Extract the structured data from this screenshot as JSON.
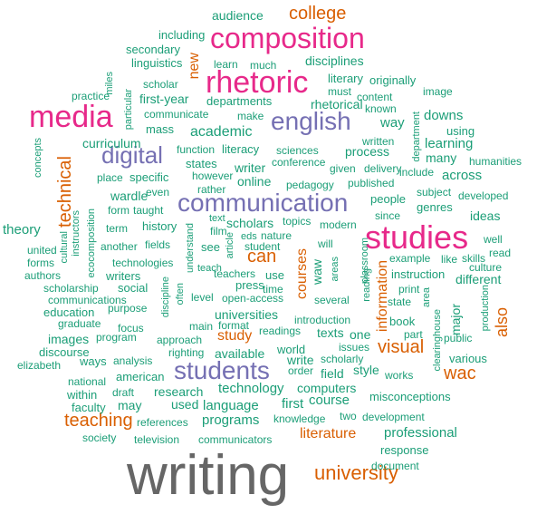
{
  "colors": {
    "green": "#1b9e77",
    "orange": "#d95f02",
    "purple": "#7570b3",
    "pink": "#e7298a",
    "gray": "#666666"
  },
  "words": [
    {
      "text": "writing",
      "color": "gray"
    },
    {
      "text": "composition",
      "color": "pink"
    },
    {
      "text": "rhetoric",
      "color": "pink"
    },
    {
      "text": "media",
      "color": "pink"
    },
    {
      "text": "studies",
      "color": "pink"
    },
    {
      "text": "english",
      "color": "purple"
    },
    {
      "text": "communication",
      "color": "purple"
    },
    {
      "text": "students",
      "color": "purple"
    },
    {
      "text": "digital",
      "color": "purple"
    },
    {
      "text": "college",
      "color": "orange"
    },
    {
      "text": "university",
      "color": "orange"
    },
    {
      "text": "wac",
      "color": "orange"
    },
    {
      "text": "visual",
      "color": "orange"
    },
    {
      "text": "technical",
      "color": "orange"
    },
    {
      "text": "teaching",
      "color": "orange"
    },
    {
      "text": "can",
      "color": "orange"
    },
    {
      "text": "study",
      "color": "orange"
    },
    {
      "text": "literature",
      "color": "orange"
    },
    {
      "text": "also",
      "color": "orange"
    },
    {
      "text": "information",
      "color": "orange"
    },
    {
      "text": "courses",
      "color": "orange"
    },
    {
      "text": "new",
      "color": "orange"
    },
    {
      "text": "audience",
      "color": "green"
    },
    {
      "text": "including",
      "color": "green"
    },
    {
      "text": "secondary",
      "color": "green"
    },
    {
      "text": "linguistics",
      "color": "green"
    },
    {
      "text": "learn",
      "color": "green"
    },
    {
      "text": "much",
      "color": "green"
    },
    {
      "text": "disciplines",
      "color": "green"
    },
    {
      "text": "literary",
      "color": "green"
    },
    {
      "text": "originally",
      "color": "green"
    },
    {
      "text": "scholar",
      "color": "green"
    },
    {
      "text": "miles",
      "color": "green"
    },
    {
      "text": "practice",
      "color": "green"
    },
    {
      "text": "particular",
      "color": "green"
    },
    {
      "text": "first-year",
      "color": "green"
    },
    {
      "text": "departments",
      "color": "green"
    },
    {
      "text": "rhetorical",
      "color": "green"
    },
    {
      "text": "must",
      "color": "green"
    },
    {
      "text": "content",
      "color": "green"
    },
    {
      "text": "image",
      "color": "green"
    },
    {
      "text": "known",
      "color": "green"
    },
    {
      "text": "communicate",
      "color": "green"
    },
    {
      "text": "make",
      "color": "green"
    },
    {
      "text": "mass",
      "color": "green"
    },
    {
      "text": "academic",
      "color": "green"
    },
    {
      "text": "way",
      "color": "green"
    },
    {
      "text": "downs",
      "color": "green"
    },
    {
      "text": "using",
      "color": "green"
    },
    {
      "text": "curriculum",
      "color": "green"
    },
    {
      "text": "written",
      "color": "green"
    },
    {
      "text": "department",
      "color": "green"
    },
    {
      "text": "learning",
      "color": "green"
    },
    {
      "text": "function",
      "color": "green"
    },
    {
      "text": "literacy",
      "color": "green"
    },
    {
      "text": "sciences",
      "color": "green"
    },
    {
      "text": "process",
      "color": "green"
    },
    {
      "text": "many",
      "color": "green"
    },
    {
      "text": "humanities",
      "color": "green"
    },
    {
      "text": "states",
      "color": "green"
    },
    {
      "text": "conference",
      "color": "green"
    },
    {
      "text": "writer",
      "color": "green"
    },
    {
      "text": "given",
      "color": "green"
    },
    {
      "text": "delivery",
      "color": "green"
    },
    {
      "text": "include",
      "color": "green"
    },
    {
      "text": "concepts",
      "color": "green"
    },
    {
      "text": "place",
      "color": "green"
    },
    {
      "text": "specific",
      "color": "green"
    },
    {
      "text": "however",
      "color": "green"
    },
    {
      "text": "online",
      "color": "green"
    },
    {
      "text": "across",
      "color": "green"
    },
    {
      "text": "wardle",
      "color": "green"
    },
    {
      "text": "even",
      "color": "green"
    },
    {
      "text": "rather",
      "color": "green"
    },
    {
      "text": "pedagogy",
      "color": "green"
    },
    {
      "text": "published",
      "color": "green"
    },
    {
      "text": "subject",
      "color": "green"
    },
    {
      "text": "developed",
      "color": "green"
    },
    {
      "text": "form",
      "color": "green"
    },
    {
      "text": "taught",
      "color": "green"
    },
    {
      "text": "people",
      "color": "green"
    },
    {
      "text": "genres",
      "color": "green"
    },
    {
      "text": "text",
      "color": "green"
    },
    {
      "text": "scholars",
      "color": "green"
    },
    {
      "text": "topics",
      "color": "green"
    },
    {
      "text": "since",
      "color": "green"
    },
    {
      "text": "ideas",
      "color": "green"
    },
    {
      "text": "theory",
      "color": "green"
    },
    {
      "text": "term",
      "color": "green"
    },
    {
      "text": "history",
      "color": "green"
    },
    {
      "text": "film",
      "color": "green"
    },
    {
      "text": "eds",
      "color": "green"
    },
    {
      "text": "nature",
      "color": "green"
    },
    {
      "text": "modern",
      "color": "green"
    },
    {
      "text": "well",
      "color": "green"
    },
    {
      "text": "instructors",
      "color": "green"
    },
    {
      "text": "ecocomposition",
      "color": "green"
    },
    {
      "text": "cultural",
      "color": "green"
    },
    {
      "text": "united",
      "color": "green"
    },
    {
      "text": "forms",
      "color": "green"
    },
    {
      "text": "another",
      "color": "green"
    },
    {
      "text": "fields",
      "color": "green"
    },
    {
      "text": "see",
      "color": "green"
    },
    {
      "text": "article",
      "color": "green"
    },
    {
      "text": "student",
      "color": "green"
    },
    {
      "text": "will",
      "color": "green"
    },
    {
      "text": "read",
      "color": "green"
    },
    {
      "text": "example",
      "color": "green"
    },
    {
      "text": "like",
      "color": "green"
    },
    {
      "text": "skills",
      "color": "green"
    },
    {
      "text": "authors",
      "color": "green"
    },
    {
      "text": "technologies",
      "color": "green"
    },
    {
      "text": "understand",
      "color": "green"
    },
    {
      "text": "teachers",
      "color": "green"
    },
    {
      "text": "use",
      "color": "green"
    },
    {
      "text": "waw",
      "color": "green"
    },
    {
      "text": "areas",
      "color": "green"
    },
    {
      "text": "classroom",
      "color": "green"
    },
    {
      "text": "culture",
      "color": "green"
    },
    {
      "text": "scholarship",
      "color": "green"
    },
    {
      "text": "writers",
      "color": "green"
    },
    {
      "text": "teach",
      "color": "green"
    },
    {
      "text": "press",
      "color": "green"
    },
    {
      "text": "instruction",
      "color": "green"
    },
    {
      "text": "different",
      "color": "green"
    },
    {
      "text": "communications",
      "color": "green"
    },
    {
      "text": "social",
      "color": "green"
    },
    {
      "text": "time",
      "color": "green"
    },
    {
      "text": "reading",
      "color": "green"
    },
    {
      "text": "print",
      "color": "green"
    },
    {
      "text": "education",
      "color": "green"
    },
    {
      "text": "purpose",
      "color": "green"
    },
    {
      "text": "discipline",
      "color": "green"
    },
    {
      "text": "level",
      "color": "green"
    },
    {
      "text": "open-access",
      "color": "green"
    },
    {
      "text": "several",
      "color": "green"
    },
    {
      "text": "state",
      "color": "green"
    },
    {
      "text": "area",
      "color": "green"
    },
    {
      "text": "graduate",
      "color": "green"
    },
    {
      "text": "often",
      "color": "green"
    },
    {
      "text": "universities",
      "color": "green"
    },
    {
      "text": "book",
      "color": "green"
    },
    {
      "text": "major",
      "color": "green"
    },
    {
      "text": "production",
      "color": "green"
    },
    {
      "text": "images",
      "color": "green"
    },
    {
      "text": "program",
      "color": "green"
    },
    {
      "text": "focus",
      "color": "green"
    },
    {
      "text": "main",
      "color": "green"
    },
    {
      "text": "format",
      "color": "green"
    },
    {
      "text": "introduction",
      "color": "green"
    },
    {
      "text": "part",
      "color": "green"
    },
    {
      "text": "public",
      "color": "green"
    },
    {
      "text": "discourse",
      "color": "green"
    },
    {
      "text": "approach",
      "color": "green"
    },
    {
      "text": "readings",
      "color": "green"
    },
    {
      "text": "texts",
      "color": "green"
    },
    {
      "text": "one",
      "color": "green"
    },
    {
      "text": "elizabeth",
      "color": "green"
    },
    {
      "text": "ways",
      "color": "green"
    },
    {
      "text": "analysis",
      "color": "green"
    },
    {
      "text": "righting",
      "color": "green"
    },
    {
      "text": "available",
      "color": "green"
    },
    {
      "text": "world",
      "color": "green"
    },
    {
      "text": "issues",
      "color": "green"
    },
    {
      "text": "clearinghouse",
      "color": "green"
    },
    {
      "text": "various",
      "color": "green"
    },
    {
      "text": "national",
      "color": "green"
    },
    {
      "text": "within",
      "color": "green"
    },
    {
      "text": "american",
      "color": "green"
    },
    {
      "text": "write",
      "color": "green"
    },
    {
      "text": "order",
      "color": "green"
    },
    {
      "text": "scholarly",
      "color": "green"
    },
    {
      "text": "field",
      "color": "green"
    },
    {
      "text": "style",
      "color": "green"
    },
    {
      "text": "works",
      "color": "green"
    },
    {
      "text": "draft",
      "color": "green"
    },
    {
      "text": "research",
      "color": "green"
    },
    {
      "text": "technology",
      "color": "green"
    },
    {
      "text": "computers",
      "color": "green"
    },
    {
      "text": "faculty",
      "color": "green"
    },
    {
      "text": "may",
      "color": "green"
    },
    {
      "text": "used",
      "color": "green"
    },
    {
      "text": "language",
      "color": "green"
    },
    {
      "text": "first",
      "color": "green"
    },
    {
      "text": "course",
      "color": "green"
    },
    {
      "text": "misconceptions",
      "color": "green"
    },
    {
      "text": "references",
      "color": "green"
    },
    {
      "text": "programs",
      "color": "green"
    },
    {
      "text": "knowledge",
      "color": "green"
    },
    {
      "text": "two",
      "color": "green"
    },
    {
      "text": "development",
      "color": "green"
    },
    {
      "text": "society",
      "color": "green"
    },
    {
      "text": "television",
      "color": "green"
    },
    {
      "text": "communicators",
      "color": "green"
    },
    {
      "text": "professional",
      "color": "green"
    },
    {
      "text": "response",
      "color": "green"
    },
    {
      "text": "document",
      "color": "green"
    }
  ]
}
